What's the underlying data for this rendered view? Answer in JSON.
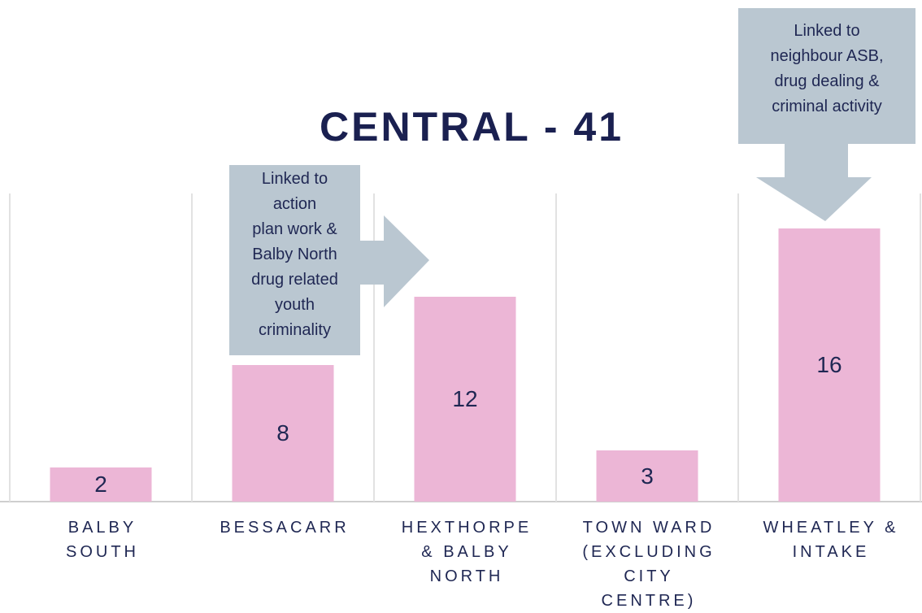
{
  "chart_data": {
    "type": "bar",
    "title": "CENTRAL - 41",
    "categories": [
      "BALBY\nSOUTH",
      "BESSACARR",
      "HEXTHORPE\n& BALBY\nNORTH",
      "TOWN WARD\n(EXCLUDING\nCITY\nCENTRE)",
      "WHEATLEY &\nINTAKE"
    ],
    "values": [
      2,
      8,
      12,
      3,
      16
    ],
    "color": "#ecb6d6",
    "annotations": [
      "Linked to\naction\nplan work &\nBalby North\ndrug related\nyouth\ncriminality",
      "Linked to\nneighbour ASB,\ndrug dealing &\ncriminal activity"
    ]
  }
}
